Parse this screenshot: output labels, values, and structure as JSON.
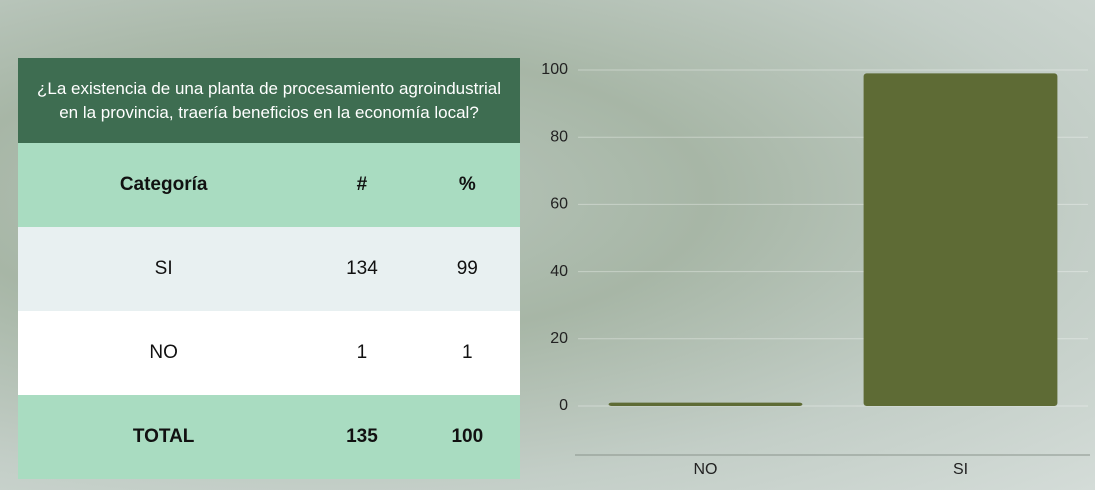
{
  "table": {
    "title": "¿La existencia de una planta de procesamiento agroindustrial en la provincia, traería beneficios en la economía local?",
    "header": [
      "Categoría",
      "#",
      "%"
    ],
    "rows": [
      [
        "SI",
        134,
        99
      ],
      [
        "NO",
        1,
        1
      ]
    ],
    "total": [
      "TOTAL",
      135,
      100
    ]
  },
  "chart_data": {
    "type": "bar",
    "categories": [
      "NO",
      "SI"
    ],
    "values": [
      1,
      99
    ],
    "color": "#5e6b35",
    "ylim": [
      0,
      100
    ],
    "yticks": [
      0,
      20,
      40,
      60,
      80,
      100
    ],
    "grid": true
  }
}
